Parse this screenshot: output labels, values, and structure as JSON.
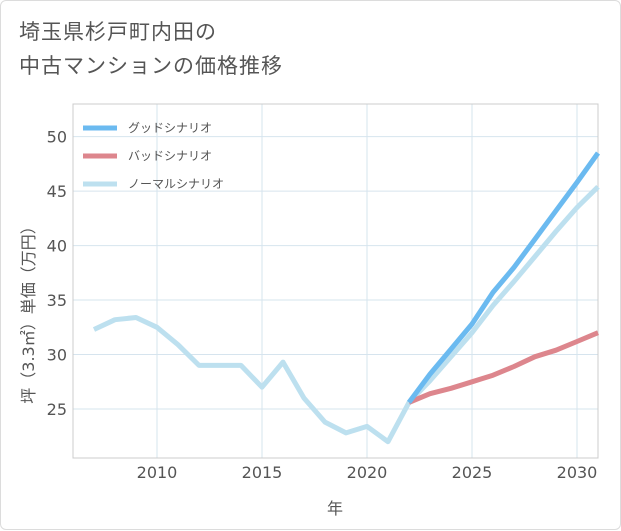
{
  "title_line1": "埼玉県杉戸町内田の",
  "title_line2": "中古マンションの価格推移",
  "chart_data": {
    "type": "line",
    "xlabel": "年",
    "ylabel": "坪（3.3㎡）単価（万円）",
    "xlim": [
      2006,
      2031
    ],
    "ylim": [
      20.5,
      53
    ],
    "x_ticks": [
      "2010",
      "2015",
      "2020",
      "2025",
      "2030"
    ],
    "y_ticks": [
      "25",
      "30",
      "35",
      "40",
      "45",
      "50"
    ],
    "grid": true,
    "legend_position": "top-left",
    "series": [
      {
        "name": "グッドシナリオ",
        "color": "#6bbaf0",
        "x": [
          2022,
          2023,
          2024,
          2025,
          2026,
          2027,
          2028,
          2029,
          2030,
          2031
        ],
        "y": [
          25.6,
          28.2,
          30.5,
          32.8,
          35.7,
          38.0,
          40.6,
          43.2,
          45.8,
          48.5
        ]
      },
      {
        "name": "バッドシナリオ",
        "color": "#dd868d",
        "x": [
          2022,
          2023,
          2024,
          2025,
          2026,
          2027,
          2028,
          2029,
          2030,
          2031
        ],
        "y": [
          25.6,
          26.4,
          26.9,
          27.5,
          28.1,
          28.9,
          29.8,
          30.4,
          31.2,
          32.0
        ]
      },
      {
        "name": "ノーマルシナリオ",
        "color": "#bde0ef",
        "x": [
          2007,
          2008,
          2009,
          2010,
          2011,
          2012,
          2013,
          2014,
          2015,
          2016,
          2017,
          2018,
          2019,
          2020,
          2021,
          2022,
          2023,
          2024,
          2025,
          2026,
          2027,
          2028,
          2029,
          2030,
          2031
        ],
        "y": [
          32.3,
          33.2,
          33.4,
          32.5,
          30.9,
          29.0,
          29.0,
          29.0,
          27.0,
          29.3,
          26.0,
          23.8,
          22.8,
          23.4,
          22.0,
          25.6,
          27.6,
          29.8,
          32.0,
          34.5,
          36.7,
          39.0,
          41.3,
          43.5,
          45.4
        ]
      }
    ]
  }
}
